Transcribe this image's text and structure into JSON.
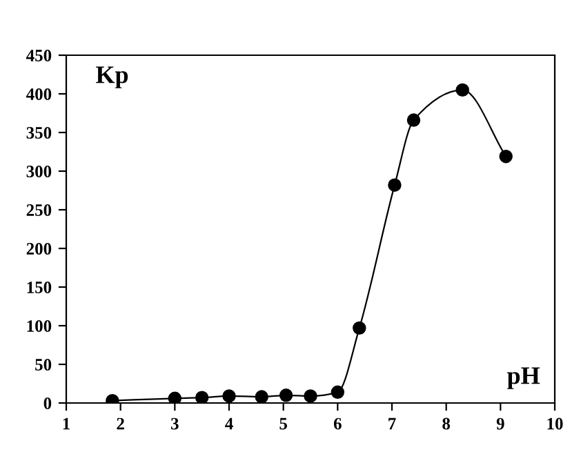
{
  "chart_data": {
    "type": "line",
    "xlabel": "pH",
    "ylabel": "Kp",
    "x": [
      1.85,
      3,
      3.5,
      4,
      4.6,
      5.05,
      5.5,
      6,
      6.4,
      7.05,
      7.4,
      8.3,
      9.1
    ],
    "series": [
      {
        "color": "#000000",
        "values": [
          3,
          6,
          7,
          9,
          8,
          10,
          9,
          14,
          97,
          282,
          366,
          405,
          319
        ]
      }
    ],
    "xlim": [
      1,
      10
    ],
    "xticks": [
      1,
      2,
      3,
      4,
      5,
      6,
      7,
      8,
      9,
      10
    ],
    "ylim": [
      0,
      450
    ],
    "yticks": [
      0,
      50,
      100,
      150,
      200,
      250,
      300,
      350,
      400,
      450
    ],
    "marker": "circle",
    "line_style": "solid",
    "grid": false
  }
}
